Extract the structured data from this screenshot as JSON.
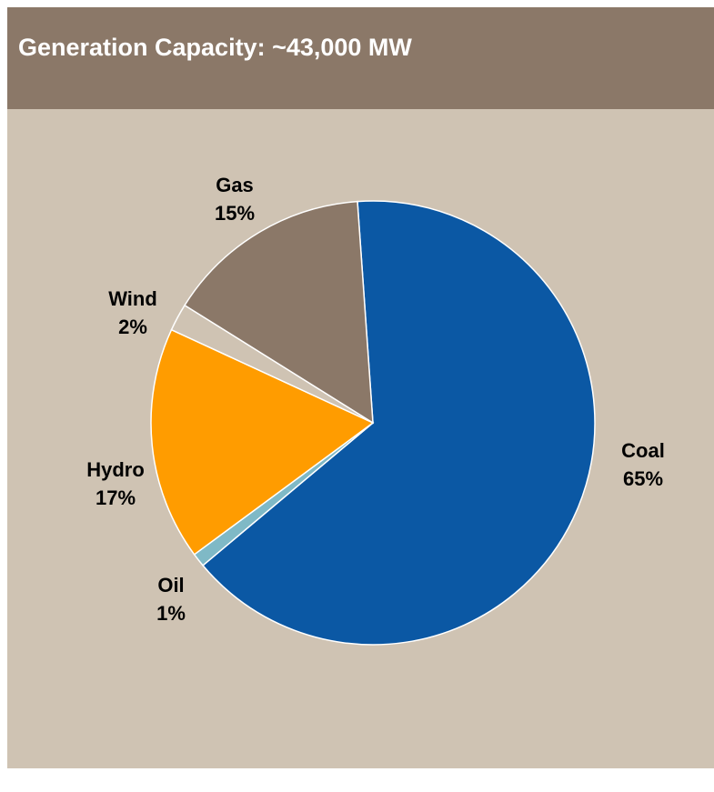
{
  "chart_data": {
    "type": "pie",
    "title": "Generation Capacity: ~43,000 MW",
    "categories": [
      "Coal",
      "Oil",
      "Hydro",
      "Wind",
      "Gas"
    ],
    "values": [
      65,
      1,
      17,
      2,
      15
    ],
    "value_labels": [
      "65%",
      "1%",
      "17%",
      "2%",
      "15%"
    ],
    "colors": [
      "#0b58a4",
      "#7fb9c6",
      "#ff9c00",
      "#cfc3b3",
      "#8b7868"
    ]
  }
}
